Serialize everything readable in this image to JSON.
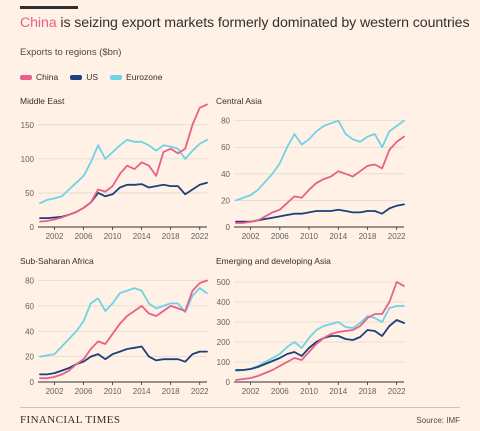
{
  "header": {
    "title_highlight": "China",
    "title_rest": " is seizing export markets formerly dominated by western countries",
    "subtitle": "Exports to regions ($bn)"
  },
  "legend": [
    {
      "label": "China",
      "color": "#e8608a"
    },
    {
      "label": "US",
      "color": "#1d3f7b"
    },
    {
      "label": "Eurozone",
      "color": "#6ed3e6"
    }
  ],
  "footer": {
    "logo": "FINANCIAL TIMES",
    "source": "Source: IMF"
  },
  "chart_data": [
    {
      "type": "line",
      "title": "Middle East",
      "x": [
        2000,
        2001,
        2002,
        2003,
        2004,
        2005,
        2006,
        2007,
        2008,
        2009,
        2010,
        2011,
        2012,
        2013,
        2014,
        2015,
        2016,
        2017,
        2018,
        2019,
        2020,
        2021,
        2022,
        2023
      ],
      "ylim": [
        0,
        160
      ],
      "yticks": [
        0,
        50,
        100,
        150
      ],
      "xticks": [
        2002,
        2006,
        2010,
        2014,
        2018,
        2022
      ],
      "series": [
        {
          "name": "China",
          "color": "#e8608a",
          "values": [
            8,
            9,
            11,
            14,
            18,
            22,
            28,
            36,
            55,
            52,
            60,
            78,
            90,
            85,
            95,
            90,
            75,
            110,
            115,
            108,
            115,
            150,
            175,
            180
          ]
        },
        {
          "name": "US",
          "color": "#1d3f7b",
          "values": [
            13,
            13,
            14,
            15,
            18,
            22,
            28,
            36,
            50,
            45,
            48,
            58,
            62,
            62,
            63,
            58,
            60,
            62,
            60,
            60,
            48,
            55,
            62,
            65
          ]
        },
        {
          "name": "Eurozone",
          "color": "#6ed3e6",
          "values": [
            35,
            40,
            42,
            45,
            55,
            65,
            75,
            95,
            120,
            100,
            110,
            120,
            128,
            125,
            125,
            120,
            112,
            120,
            118,
            115,
            100,
            112,
            122,
            128
          ]
        }
      ]
    },
    {
      "type": "line",
      "title": "Central Asia",
      "x": [
        2000,
        2001,
        2002,
        2003,
        2004,
        2005,
        2006,
        2007,
        2008,
        2009,
        2010,
        2011,
        2012,
        2013,
        2014,
        2015,
        2016,
        2017,
        2018,
        2019,
        2020,
        2021,
        2022,
        2023
      ],
      "ylim": [
        0,
        82
      ],
      "yticks": [
        0,
        20,
        40,
        60,
        80
      ],
      "xticks": [
        2002,
        2006,
        2010,
        2014,
        2018,
        2022
      ],
      "series": [
        {
          "name": "China",
          "color": "#e8608a",
          "values": [
            3,
            3,
            4,
            5,
            8,
            11,
            13,
            18,
            23,
            22,
            28,
            33,
            36,
            38,
            42,
            40,
            38,
            42,
            46,
            47,
            44,
            58,
            64,
            68
          ]
        },
        {
          "name": "US",
          "color": "#1d3f7b",
          "values": [
            4,
            4,
            4,
            5,
            6,
            7,
            8,
            9,
            10,
            10,
            11,
            12,
            12,
            12,
            13,
            12,
            11,
            11,
            12,
            12,
            10,
            14,
            16,
            17
          ]
        },
        {
          "name": "Eurozone",
          "color": "#6ed3e6",
          "values": [
            20,
            22,
            24,
            28,
            34,
            40,
            48,
            60,
            70,
            62,
            66,
            72,
            76,
            78,
            80,
            70,
            66,
            64,
            68,
            70,
            60,
            72,
            76,
            80
          ]
        }
      ]
    },
    {
      "type": "line",
      "title": "Sub-Saharan Africa",
      "x": [
        2000,
        2001,
        2002,
        2003,
        2004,
        2005,
        2006,
        2007,
        2008,
        2009,
        2010,
        2011,
        2012,
        2013,
        2014,
        2015,
        2016,
        2017,
        2018,
        2019,
        2020,
        2021,
        2022,
        2023
      ],
      "ylim": [
        0,
        82
      ],
      "yticks": [
        0,
        20,
        40,
        60,
        80
      ],
      "xticks": [
        2002,
        2006,
        2010,
        2014,
        2018,
        2022
      ],
      "series": [
        {
          "name": "China",
          "color": "#e8608a",
          "values": [
            3,
            3,
            4,
            6,
            9,
            14,
            18,
            26,
            32,
            30,
            38,
            46,
            52,
            56,
            60,
            54,
            52,
            56,
            60,
            58,
            56,
            72,
            78,
            80
          ]
        },
        {
          "name": "US",
          "color": "#1d3f7b",
          "values": [
            6,
            6,
            7,
            9,
            11,
            14,
            16,
            20,
            22,
            18,
            22,
            24,
            26,
            27,
            28,
            20,
            17,
            18,
            18,
            18,
            16,
            22,
            24,
            24
          ]
        },
        {
          "name": "Eurozone",
          "color": "#6ed3e6",
          "values": [
            20,
            21,
            22,
            28,
            34,
            40,
            48,
            62,
            66,
            56,
            62,
            70,
            72,
            74,
            72,
            62,
            58,
            60,
            62,
            62,
            55,
            68,
            74,
            70
          ]
        }
      ]
    },
    {
      "type": "line",
      "title": "Emerging and developing Asia",
      "x": [
        2000,
        2001,
        2002,
        2003,
        2004,
        2005,
        2006,
        2007,
        2008,
        2009,
        2010,
        2011,
        2012,
        2013,
        2014,
        2015,
        2016,
        2017,
        2018,
        2019,
        2020,
        2021,
        2022,
        2023
      ],
      "ylim": [
        0,
        520
      ],
      "yticks": [
        0,
        100,
        200,
        300,
        400,
        500
      ],
      "xticks": [
        2002,
        2006,
        2010,
        2014,
        2018,
        2022
      ],
      "series": [
        {
          "name": "China",
          "color": "#e8608a",
          "values": [
            10,
            15,
            20,
            30,
            45,
            60,
            80,
            100,
            120,
            110,
            150,
            190,
            220,
            240,
            250,
            255,
            260,
            280,
            320,
            340,
            340,
            400,
            500,
            480
          ]
        },
        {
          "name": "US",
          "color": "#1d3f7b",
          "values": [
            60,
            60,
            65,
            75,
            90,
            105,
            120,
            140,
            150,
            130,
            170,
            200,
            220,
            230,
            230,
            215,
            210,
            225,
            260,
            255,
            230,
            280,
            310,
            295
          ]
        },
        {
          "name": "Eurozone",
          "color": "#6ed3e6",
          "values": [
            55,
            60,
            65,
            80,
            100,
            120,
            140,
            175,
            200,
            170,
            220,
            260,
            280,
            290,
            300,
            275,
            270,
            295,
            330,
            320,
            300,
            370,
            380,
            380
          ]
        }
      ]
    }
  ]
}
